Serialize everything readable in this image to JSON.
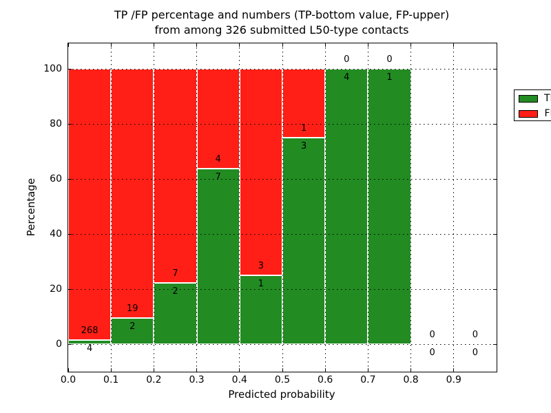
{
  "title": {
    "line1": "TP /FP percentage and numbers (TP-bottom value, FP-upper)",
    "line2": "from among 326 submitted L50-type contacts"
  },
  "colors": {
    "tp": "#228b22",
    "fp": "#ff1f16",
    "grid": "#000000",
    "background": "#ffffff"
  },
  "chart_data": {
    "type": "bar",
    "stacked": true,
    "title": "TP /FP percentage and numbers (TP-bottom value, FP-upper) from among 326 submitted L50-type contacts",
    "xlabel": "Predicted probability",
    "ylabel": "Percentage",
    "xlim": [
      0.0,
      1.0
    ],
    "ylim": [
      -10,
      110
    ],
    "x_ticks": [
      "0.0",
      "0.1",
      "0.2",
      "0.3",
      "0.4",
      "0.5",
      "0.6",
      "0.7",
      "0.8",
      "0.9"
    ],
    "y_ticks": [
      0,
      20,
      40,
      60,
      80,
      100
    ],
    "grid": true,
    "grid_style": "dotted",
    "total_contacts": 326,
    "legend": {
      "position": "upper right",
      "entries": [
        {
          "label": "TP",
          "color": "#228b22"
        },
        {
          "label": "FP",
          "color": "#ff1f16"
        }
      ]
    },
    "bins": [
      {
        "range": [
          0.0,
          0.1
        ],
        "tp": 4,
        "fp": 268,
        "tp_pct": 1.47
      },
      {
        "range": [
          0.1,
          0.2
        ],
        "tp": 2,
        "fp": 19,
        "tp_pct": 9.52
      },
      {
        "range": [
          0.2,
          0.3
        ],
        "tp": 2,
        "fp": 7,
        "tp_pct": 22.22
      },
      {
        "range": [
          0.3,
          0.4
        ],
        "tp": 7,
        "fp": 4,
        "tp_pct": 63.64
      },
      {
        "range": [
          0.4,
          0.5
        ],
        "tp": 1,
        "fp": 3,
        "tp_pct": 25.0
      },
      {
        "range": [
          0.5,
          0.6
        ],
        "tp": 3,
        "fp": 1,
        "tp_pct": 75.0
      },
      {
        "range": [
          0.6,
          0.7
        ],
        "tp": 4,
        "fp": 0,
        "tp_pct": 100.0
      },
      {
        "range": [
          0.7,
          0.8
        ],
        "tp": 1,
        "fp": 0,
        "tp_pct": 100.0
      },
      {
        "range": [
          0.8,
          0.9
        ],
        "tp": 0,
        "fp": 0,
        "tp_pct": 0.0
      },
      {
        "range": [
          0.9,
          1.0
        ],
        "tp": 0,
        "fp": 0,
        "tp_pct": 0.0
      }
    ]
  }
}
